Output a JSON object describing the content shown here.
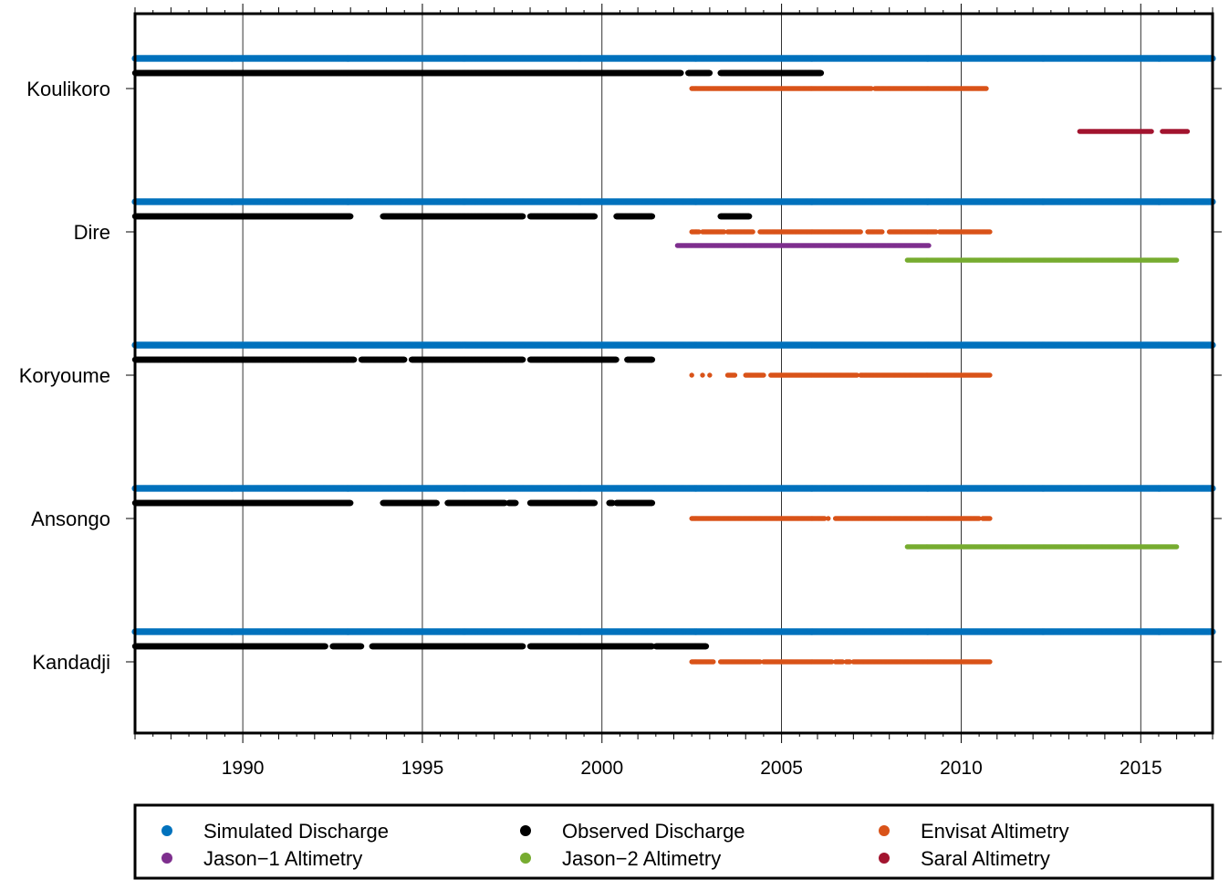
{
  "chart_data": {
    "type": "scatter",
    "title": "",
    "xlabel": "",
    "ylabel": "",
    "xlim": [
      1987.0,
      2017.0
    ],
    "x_ticks": [
      1990,
      1995,
      2000,
      2005,
      2010,
      2015
    ],
    "x_tick_labels": [
      "1990",
      "1995",
      "2000",
      "2005",
      "2010",
      "2015"
    ],
    "grid": "vertical at major ticks",
    "legend_position": "bottom",
    "stations": [
      "Koulikoro",
      "Dire",
      "Koryoume",
      "Ansongo",
      "Kandadji"
    ],
    "series": [
      {
        "name": "Simulated Discharge",
        "color": "#0072bd",
        "marker": "dot"
      },
      {
        "name": "Observed Discharge",
        "color": "#000000",
        "marker": "dot"
      },
      {
        "name": "Envisat Altimetry",
        "color": "#d95319",
        "marker": "dot"
      },
      {
        "name": "Jason−1 Altimetry",
        "color": "#7e2f8e",
        "marker": "dot"
      },
      {
        "name": "Jason−2 Altimetry",
        "color": "#77ac30",
        "marker": "dot"
      },
      {
        "name": "Saral Altimetry",
        "color": "#a2142f",
        "marker": "dot"
      }
    ],
    "coverage": [
      {
        "station": "Koulikoro",
        "Simulated Discharge": [
          [
            1987.0,
            2017.0
          ]
        ],
        "Observed Discharge": [
          [
            1987.0,
            2002.2
          ],
          [
            2002.4,
            2003.0
          ],
          [
            2003.3,
            2006.1
          ]
        ],
        "Envisat Altimetry": [
          [
            2002.5,
            2007.5
          ],
          [
            2007.6,
            2010.7
          ]
        ],
        "Saral Altimetry": [
          [
            2013.3,
            2015.3
          ],
          [
            2015.6,
            2016.3
          ]
        ]
      },
      {
        "station": "Dire",
        "Simulated Discharge": [
          [
            1987.0,
            2017.0
          ]
        ],
        "Observed Discharge": [
          [
            1987.0,
            1993.0
          ],
          [
            1993.9,
            1997.8
          ],
          [
            1998.0,
            1999.8
          ],
          [
            2000.4,
            2001.4
          ],
          [
            2003.3,
            2004.1
          ]
        ],
        "Envisat Altimetry": [
          [
            2002.5,
            2002.7
          ],
          [
            2002.8,
            2003.4
          ],
          [
            2003.5,
            2004.2
          ],
          [
            2004.4,
            2007.2
          ],
          [
            2007.4,
            2007.8
          ],
          [
            2008.0,
            2009.3
          ],
          [
            2009.4,
            2010.8
          ]
        ],
        "Jason−1 Altimetry": [
          [
            2002.1,
            2009.1
          ]
        ],
        "Jason−2 Altimetry": [
          [
            2008.5,
            2016.0
          ]
        ]
      },
      {
        "station": "Koryoume",
        "Simulated Discharge": [
          [
            1987.0,
            2017.0
          ]
        ],
        "Observed Discharge": [
          [
            1987.0,
            1993.1
          ],
          [
            1993.3,
            1994.5
          ],
          [
            1994.7,
            1997.8
          ],
          [
            1998.0,
            2000.4
          ],
          [
            2000.7,
            2001.4
          ]
        ],
        "Envisat Altimetry": [
          [
            2002.5,
            2002.5
          ],
          [
            2002.8,
            2002.8
          ],
          [
            2003.0,
            2003.0
          ],
          [
            2003.5,
            2003.7
          ],
          [
            2004.0,
            2004.5
          ],
          [
            2004.7,
            2007.1
          ],
          [
            2007.2,
            2010.8
          ]
        ]
      },
      {
        "station": "Ansongo",
        "Simulated Discharge": [
          [
            1987.0,
            2017.0
          ]
        ],
        "Observed Discharge": [
          [
            1987.0,
            1993.0
          ],
          [
            1993.9,
            1995.4
          ],
          [
            1995.7,
            1997.3
          ],
          [
            1997.4,
            1997.6
          ],
          [
            1998.0,
            1999.8
          ],
          [
            2000.2,
            2000.3
          ],
          [
            2000.4,
            2001.4
          ]
        ],
        "Envisat Altimetry": [
          [
            2002.5,
            2006.2
          ],
          [
            2006.3,
            2006.3
          ],
          [
            2006.5,
            2010.5
          ],
          [
            2010.6,
            2010.8
          ]
        ],
        "Jason−2 Altimetry": [
          [
            2008.5,
            2016.0
          ]
        ]
      },
      {
        "station": "Kandadji",
        "Simulated Discharge": [
          [
            1987.0,
            2017.0
          ]
        ],
        "Observed Discharge": [
          [
            1987.0,
            1992.3
          ],
          [
            1992.5,
            1993.3
          ],
          [
            1993.6,
            1997.8
          ],
          [
            1998.0,
            2001.4
          ],
          [
            2001.5,
            2002.9
          ]
        ],
        "Envisat Altimetry": [
          [
            2002.5,
            2003.1
          ],
          [
            2003.3,
            2004.4
          ],
          [
            2004.5,
            2006.4
          ],
          [
            2006.5,
            2006.7
          ],
          [
            2006.8,
            2006.9
          ],
          [
            2007.0,
            2010.8
          ]
        ]
      }
    ]
  }
}
